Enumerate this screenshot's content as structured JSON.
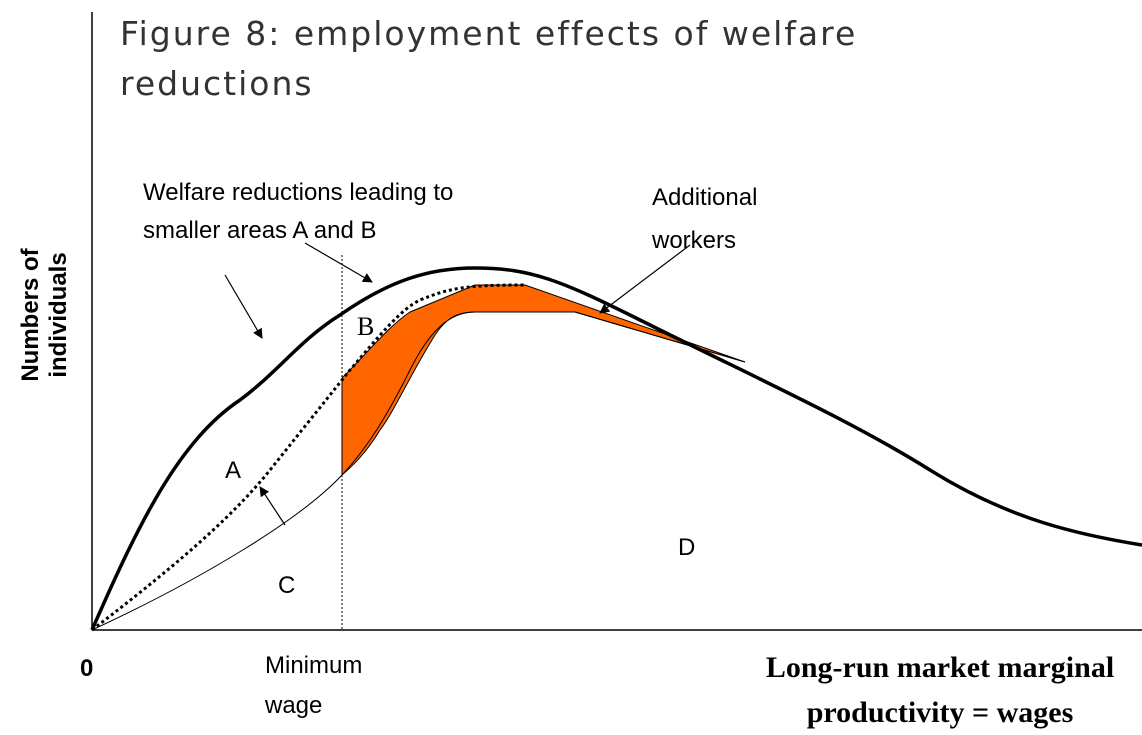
{
  "title": {
    "line1": "Figure 8: employment effects of welfare",
    "line2": "reductions"
  },
  "annotations": {
    "welfare_line1": "Welfare reductions leading to",
    "welfare_line2": "smaller areas A and B",
    "additional_line1": "Additional",
    "additional_line2": "workers",
    "area_a": "A",
    "area_b": "B",
    "area_c": "C",
    "area_d": "D"
  },
  "x_axis": {
    "origin": "0",
    "min_wage_line1": "Minimum",
    "min_wage_line2": "wage",
    "label_line1": "Long-run market marginal",
    "label_line2": "productivity = wages"
  },
  "y_axis": {
    "label_line1": "Numbers of",
    "label_line2": "individuals"
  }
}
